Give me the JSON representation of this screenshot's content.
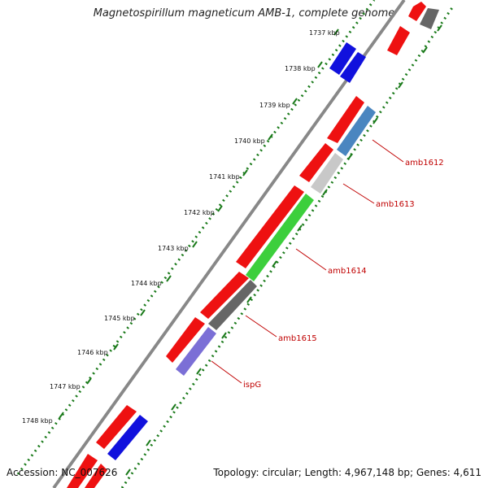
{
  "title": "Magnetospirillum magneticum AMB-1, complete genome",
  "footer": {
    "accession": "Accession: NC_007626",
    "summary": "Topology: circular; Length: 4,967,148 bp; Genes: 4,611"
  },
  "ticks": [
    "1737 kbp",
    "1738 kbp",
    "1739 kbp",
    "1740 kbp",
    "1741 kbp",
    "1742 kbp",
    "1743 kbp",
    "1744 kbp",
    "1745 kbp",
    "1746 kbp",
    "1747 kbp",
    "1748 kbp"
  ],
  "gene_labels": [
    "amb1612",
    "amb1613",
    "amb1614",
    "amb1615",
    "ispG"
  ],
  "colors": {
    "red": "#ee1111",
    "blue": "#1111dd",
    "steelblue": "#4a86c0",
    "lightgray": "#c8c8c8",
    "green": "#3ccf3c",
    "darkgray": "#666666",
    "purple": "#7b6fd6",
    "label": "#c00000",
    "tick": "#1a7a1a",
    "backbone": "#888888"
  }
}
